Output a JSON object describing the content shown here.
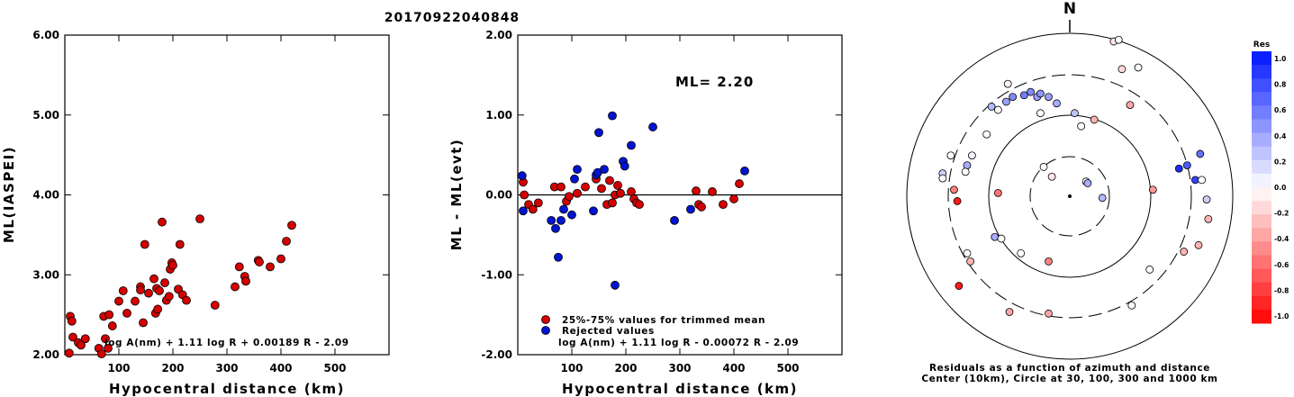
{
  "title": "20170922040848",
  "chart_data": [
    {
      "type": "scatter",
      "ylabel": "ML(IASPEI)",
      "xlabel": "Hypocentral distance (km)",
      "xlim": [
        0,
        600
      ],
      "ylim": [
        2.0,
        6.0
      ],
      "x_ticks": [
        "100",
        "200",
        "300",
        "400",
        "500"
      ],
      "y_ticks": [
        "2.00",
        "3.00",
        "4.00",
        "5.00",
        "6.00"
      ],
      "formula": "log A(nm) + 1.11 log R + 0.00189 R - 2.09",
      "series": [
        {
          "color": "#d40000",
          "points": [
            [
              8,
              2.02
            ],
            [
              10,
              2.48
            ],
            [
              13,
              2.42
            ],
            [
              15,
              2.22
            ],
            [
              25,
              2.15
            ],
            [
              30,
              2.12
            ],
            [
              38,
              2.2
            ],
            [
              63,
              2.08
            ],
            [
              68,
              2.01
            ],
            [
              72,
              2.48
            ],
            [
              75,
              2.2
            ],
            [
              80,
              2.08
            ],
            [
              82,
              2.5
            ],
            [
              88,
              2.36
            ],
            [
              100,
              2.67
            ],
            [
              108,
              2.8
            ],
            [
              115,
              2.52
            ],
            [
              130,
              2.67
            ],
            [
              140,
              2.85
            ],
            [
              140,
              2.81
            ],
            [
              145,
              2.4
            ],
            [
              148,
              3.38
            ],
            [
              155,
              2.77
            ],
            [
              165,
              2.95
            ],
            [
              168,
              2.52
            ],
            [
              170,
              2.83
            ],
            [
              172,
              2.57
            ],
            [
              175,
              2.8
            ],
            [
              180,
              3.66
            ],
            [
              185,
              2.9
            ],
            [
              188,
              2.68
            ],
            [
              193,
              2.73
            ],
            [
              195,
              3.07
            ],
            [
              198,
              3.15
            ],
            [
              200,
              3.12
            ],
            [
              210,
              2.82
            ],
            [
              213,
              3.38
            ],
            [
              218,
              2.75
            ],
            [
              225,
              2.68
            ],
            [
              250,
              3.7
            ],
            [
              278,
              2.62
            ],
            [
              315,
              2.85
            ],
            [
              323,
              3.1
            ],
            [
              333,
              2.98
            ],
            [
              335,
              2.92
            ],
            [
              358,
              3.18
            ],
            [
              360,
              3.16
            ],
            [
              380,
              3.1
            ],
            [
              400,
              3.2
            ],
            [
              410,
              3.42
            ],
            [
              420,
              3.62
            ]
          ]
        }
      ]
    },
    {
      "type": "scatter",
      "ylabel": "ML - ML(evt)",
      "xlabel": "Hypocentral distance (km)",
      "xlim": [
        0,
        600
      ],
      "ylim": [
        -2.0,
        2.0
      ],
      "x_ticks": [
        "100",
        "200",
        "300",
        "400",
        "500"
      ],
      "y_ticks": [
        "-2.00",
        "-1.00",
        "0.00",
        "1.00",
        "2.00"
      ],
      "annotation": "ML= 2.20",
      "formula": "log A(nm) + 1.11 log R - 0.00072 R - 2.09",
      "legend": {
        "placement": "bottom-center",
        "entries": [
          {
            "label": "25%-75% values for trimmed mean",
            "color": "#d40000"
          },
          {
            "label": "Rejected values",
            "color": "#0014d0"
          }
        ]
      },
      "series": [
        {
          "name": "25%-75% values for trimmed mean",
          "color": "#d40000",
          "points": [
            [
              10,
              0.16
            ],
            [
              12,
              0.0
            ],
            [
              20,
              -0.12
            ],
            [
              28,
              -0.18
            ],
            [
              38,
              -0.1
            ],
            [
              68,
              0.1
            ],
            [
              80,
              0.1
            ],
            [
              90,
              -0.08
            ],
            [
              95,
              -0.02
            ],
            [
              110,
              0.02
            ],
            [
              125,
              0.1
            ],
            [
              145,
              0.2
            ],
            [
              155,
              0.08
            ],
            [
              165,
              -0.12
            ],
            [
              170,
              0.18
            ],
            [
              175,
              -0.1
            ],
            [
              180,
              0.0
            ],
            [
              185,
              0.12
            ],
            [
              190,
              0.02
            ],
            [
              210,
              0.04
            ],
            [
              215,
              -0.05
            ],
            [
              220,
              -0.1
            ],
            [
              225,
              -0.12
            ],
            [
              330,
              0.05
            ],
            [
              335,
              -0.12
            ],
            [
              340,
              -0.15
            ],
            [
              360,
              0.04
            ],
            [
              380,
              -0.12
            ],
            [
              400,
              -0.05
            ],
            [
              410,
              0.14
            ]
          ]
        },
        {
          "name": "Rejected values",
          "color": "#0014d0",
          "points": [
            [
              8,
              0.24
            ],
            [
              10,
              -0.2
            ],
            [
              62,
              -0.32
            ],
            [
              70,
              -0.42
            ],
            [
              75,
              -0.78
            ],
            [
              80,
              -0.32
            ],
            [
              85,
              -0.18
            ],
            [
              100,
              -0.25
            ],
            [
              105,
              0.2
            ],
            [
              110,
              0.32
            ],
            [
              140,
              -0.2
            ],
            [
              145,
              0.25
            ],
            [
              148,
              0.28
            ],
            [
              150,
              0.78
            ],
            [
              160,
              0.32
            ],
            [
              175,
              0.99
            ],
            [
              180,
              -1.13
            ],
            [
              195,
              0.42
            ],
            [
              198,
              0.36
            ],
            [
              210,
              0.62
            ],
            [
              250,
              0.85
            ],
            [
              290,
              -0.32
            ],
            [
              320,
              -0.18
            ],
            [
              420,
              0.3
            ]
          ]
        }
      ]
    }
  ],
  "polar": {
    "north_label": "N",
    "caption_line1": "Residuals as a function of azimuth and distance",
    "caption_line2": "Center (10km), Circle at 30, 100, 300 and 1000 km",
    "points": [
      [
        0.27,
        0.95,
        -0.1
      ],
      [
        0.3,
        0.96,
        0.0
      ],
      [
        0.32,
        0.78,
        -0.15
      ],
      [
        0.37,
        0.56,
        -0.35
      ],
      [
        0.42,
        0.79,
        0.0
      ],
      [
        0.15,
        0.47,
        -0.3
      ],
      [
        0.07,
        0.43,
        0.0
      ],
      [
        0.03,
        0.51,
        0.25
      ],
      [
        -0.18,
        0.51,
        0.0
      ],
      [
        -0.08,
        0.57,
        0.35
      ],
      [
        -0.13,
        0.61,
        0.4
      ],
      [
        -0.2,
        0.61,
        0.4
      ],
      [
        -0.18,
        0.63,
        0.45
      ],
      [
        -0.24,
        0.64,
        0.5
      ],
      [
        -0.28,
        0.62,
        0.55
      ],
      [
        -0.35,
        0.61,
        0.5
      ],
      [
        -0.39,
        0.58,
        0.4
      ],
      [
        -0.38,
        0.69,
        -0.05
      ],
      [
        -0.44,
        0.53,
        0.0
      ],
      [
        -0.48,
        0.55,
        0.3
      ],
      [
        -0.51,
        0.38,
        0.0
      ],
      [
        -0.6,
        0.25,
        0.05
      ],
      [
        -0.63,
        0.19,
        0.35
      ],
      [
        -0.64,
        0.15,
        0.0
      ],
      [
        -0.73,
        0.25,
        0.0
      ],
      [
        -0.78,
        0.14,
        0.2
      ],
      [
        -0.78,
        0.11,
        0.0
      ],
      [
        -0.71,
        0.04,
        -0.5
      ],
      [
        -0.69,
        -0.03,
        -0.9
      ],
      [
        -0.44,
        0.02,
        -0.55
      ],
      [
        -0.16,
        0.18,
        0.0
      ],
      [
        -0.11,
        0.12,
        -0.1
      ],
      [
        0.1,
        0.09,
        0.0
      ],
      [
        0.11,
        0.08,
        0.35
      ],
      [
        0.2,
        -0.01,
        0.3
      ],
      [
        0.51,
        0.04,
        -0.4
      ],
      [
        0.67,
        0.17,
        0.9
      ],
      [
        0.72,
        0.19,
        0.7
      ],
      [
        0.77,
        0.1,
        0.8
      ],
      [
        0.8,
        0.26,
        0.6
      ],
      [
        0.81,
        0.1,
        0.0
      ],
      [
        0.84,
        -0.02,
        0.2
      ],
      [
        0.85,
        -0.14,
        -0.3
      ],
      [
        0.79,
        -0.3,
        -0.3
      ],
      [
        0.7,
        -0.34,
        -0.3
      ],
      [
        0.49,
        -0.45,
        0.0
      ],
      [
        0.38,
        -0.67,
        0.0
      ],
      [
        -0.13,
        -0.4,
        -0.5
      ],
      [
        -0.3,
        -0.35,
        0.0
      ],
      [
        -0.46,
        -0.25,
        0.35
      ],
      [
        -0.42,
        -0.26,
        0.0
      ],
      [
        -0.63,
        -0.35,
        0.0
      ],
      [
        -0.61,
        -0.4,
        -0.3
      ],
      [
        -0.37,
        -0.71,
        -0.35
      ],
      [
        -0.13,
        -0.72,
        -0.35
      ],
      [
        -0.68,
        -0.55,
        -0.9
      ]
    ]
  },
  "colorbar": {
    "label": "Res",
    "ticks": [
      "1.0",
      "0.8",
      "0.6",
      "0.4",
      "0.2",
      "0.0",
      "-0.2",
      "-0.4",
      "-0.6",
      "-0.8",
      "-1.0"
    ],
    "positive_color": "#0014ff",
    "negative_color": "#ff0000"
  }
}
